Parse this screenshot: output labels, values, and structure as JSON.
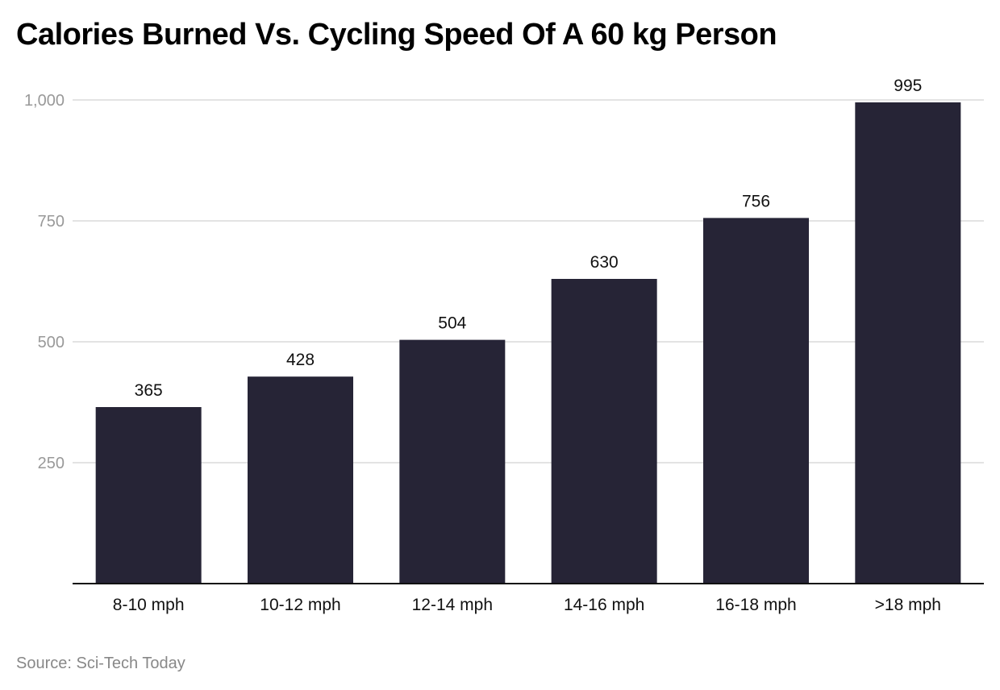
{
  "chart_data": {
    "type": "bar",
    "title": "Calories Burned Vs. Cycling Speed Of A 60 kg Person",
    "source": "Source: Sci-Tech Today",
    "categories": [
      "8-10 mph",
      "10-12 mph",
      "12-14 mph",
      "14-16 mph",
      "16-18 mph",
      ">18 mph"
    ],
    "values": [
      365,
      428,
      504,
      630,
      756,
      995
    ],
    "xlabel": "",
    "ylabel": "",
    "ylim": [
      0,
      1000
    ],
    "yticks": [
      250,
      500,
      750,
      1000
    ],
    "ytick_labels": [
      "250",
      "500",
      "750",
      "1,000"
    ],
    "grid": true,
    "bar_color": "#262436"
  }
}
